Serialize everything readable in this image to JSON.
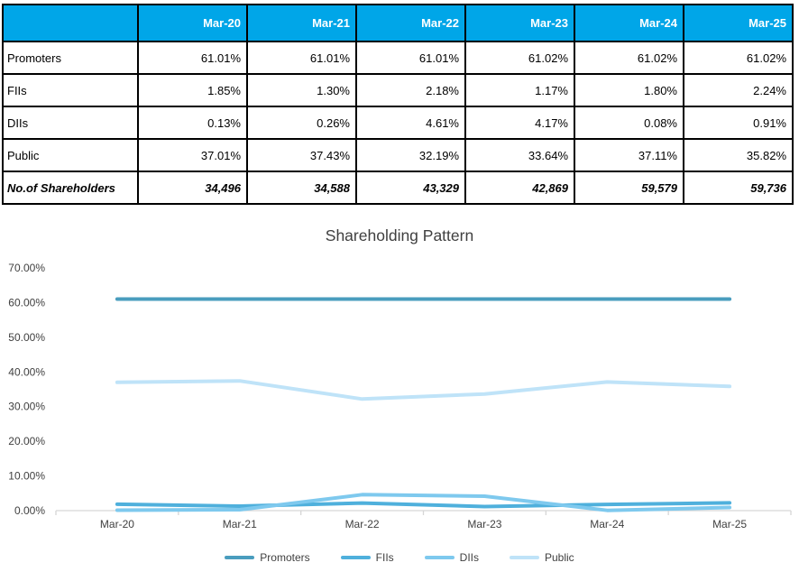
{
  "table": {
    "columns": [
      "",
      "Mar-20",
      "Mar-21",
      "Mar-22",
      "Mar-23",
      "Mar-24",
      "Mar-25"
    ],
    "rows": [
      {
        "label": "Promoters",
        "values": [
          "61.01%",
          "61.01%",
          "61.01%",
          "61.02%",
          "61.02%",
          "61.02%"
        ],
        "emphasis": false
      },
      {
        "label": "FIIs",
        "values": [
          "1.85%",
          "1.30%",
          "2.18%",
          "1.17%",
          "1.80%",
          "2.24%"
        ],
        "emphasis": false
      },
      {
        "label": "DIIs",
        "values": [
          "0.13%",
          "0.26%",
          "4.61%",
          "4.17%",
          "0.08%",
          "0.91%"
        ],
        "emphasis": false
      },
      {
        "label": "Public",
        "values": [
          "37.01%",
          "37.43%",
          "32.19%",
          "33.64%",
          "37.11%",
          "35.82%"
        ],
        "emphasis": false
      },
      {
        "label": "No.of Shareholders",
        "values": [
          "34,496",
          "34,588",
          "43,329",
          "42,869",
          "59,579",
          "59,736"
        ],
        "emphasis": true
      }
    ],
    "header_bg": "#00A6E8",
    "header_text_color": "#FFFFFF",
    "border_color": "#000000"
  },
  "chart_data": {
    "type": "line",
    "title": "Shareholding Pattern",
    "categories": [
      "Mar-20",
      "Mar-21",
      "Mar-22",
      "Mar-23",
      "Mar-24",
      "Mar-25"
    ],
    "series": [
      {
        "name": "Promoters",
        "values": [
          61.01,
          61.01,
          61.01,
          61.02,
          61.02,
          61.02
        ],
        "color": "#4A9DBE"
      },
      {
        "name": "FIIs",
        "values": [
          1.85,
          1.3,
          2.18,
          1.17,
          1.8,
          2.24
        ],
        "color": "#4FB0DC"
      },
      {
        "name": "DIIs",
        "values": [
          0.13,
          0.26,
          4.61,
          4.17,
          0.08,
          0.91
        ],
        "color": "#7EC9EE"
      },
      {
        "name": "Public",
        "values": [
          37.01,
          37.43,
          32.19,
          33.64,
          37.11,
          35.82
        ],
        "color": "#BFE3F8"
      }
    ],
    "xlabel": "",
    "ylabel": "",
    "ylim": [
      0,
      70
    ],
    "ytick_step": 10,
    "ytick_labels": [
      "0.00%",
      "10.00%",
      "20.00%",
      "30.00%",
      "40.00%",
      "50.00%",
      "60.00%",
      "70.00%"
    ],
    "grid": false,
    "legend_position": "bottom",
    "axis_color": "#D6D6D6",
    "label_color": "#404040"
  }
}
